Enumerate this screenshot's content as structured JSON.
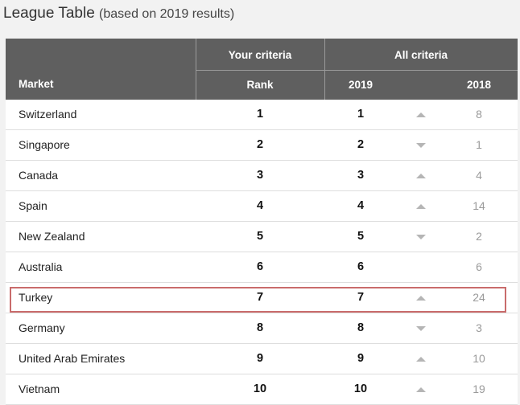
{
  "title": "League Table",
  "subtitle": "(based on 2019 results)",
  "header": {
    "market": "Market",
    "your_criteria": "Your criteria",
    "all_criteria": "All criteria",
    "rank": "Rank",
    "year_2019": "2019",
    "year_2018": "2018"
  },
  "rows": [
    {
      "market": "Switzerland",
      "your_rank": "1",
      "rank_2019": "1",
      "trend": "up",
      "rank_2018": "8"
    },
    {
      "market": "Singapore",
      "your_rank": "2",
      "rank_2019": "2",
      "trend": "down",
      "rank_2018": "1"
    },
    {
      "market": "Canada",
      "your_rank": "3",
      "rank_2019": "3",
      "trend": "up",
      "rank_2018": "4"
    },
    {
      "market": "Spain",
      "your_rank": "4",
      "rank_2019": "4",
      "trend": "up",
      "rank_2018": "14"
    },
    {
      "market": "New Zealand",
      "your_rank": "5",
      "rank_2019": "5",
      "trend": "down",
      "rank_2018": "2"
    },
    {
      "market": "Australia",
      "your_rank": "6",
      "rank_2019": "6",
      "trend": "neutral",
      "rank_2018": "6"
    },
    {
      "market": "Turkey",
      "your_rank": "7",
      "rank_2019": "7",
      "trend": "up",
      "rank_2018": "24"
    },
    {
      "market": "Germany",
      "your_rank": "8",
      "rank_2019": "8",
      "trend": "down",
      "rank_2018": "3"
    },
    {
      "market": "United Arab Emirates",
      "your_rank": "9",
      "rank_2019": "9",
      "trend": "up",
      "rank_2018": "10"
    },
    {
      "market": "Vietnam",
      "your_rank": "10",
      "rank_2019": "10",
      "trend": "up",
      "rank_2018": "19"
    }
  ],
  "highlighted_market": "Turkey",
  "colors": {
    "header_bg": "#5f5f5f",
    "highlight_border": "#c96b6b",
    "arrow": "#b5b5b5"
  }
}
